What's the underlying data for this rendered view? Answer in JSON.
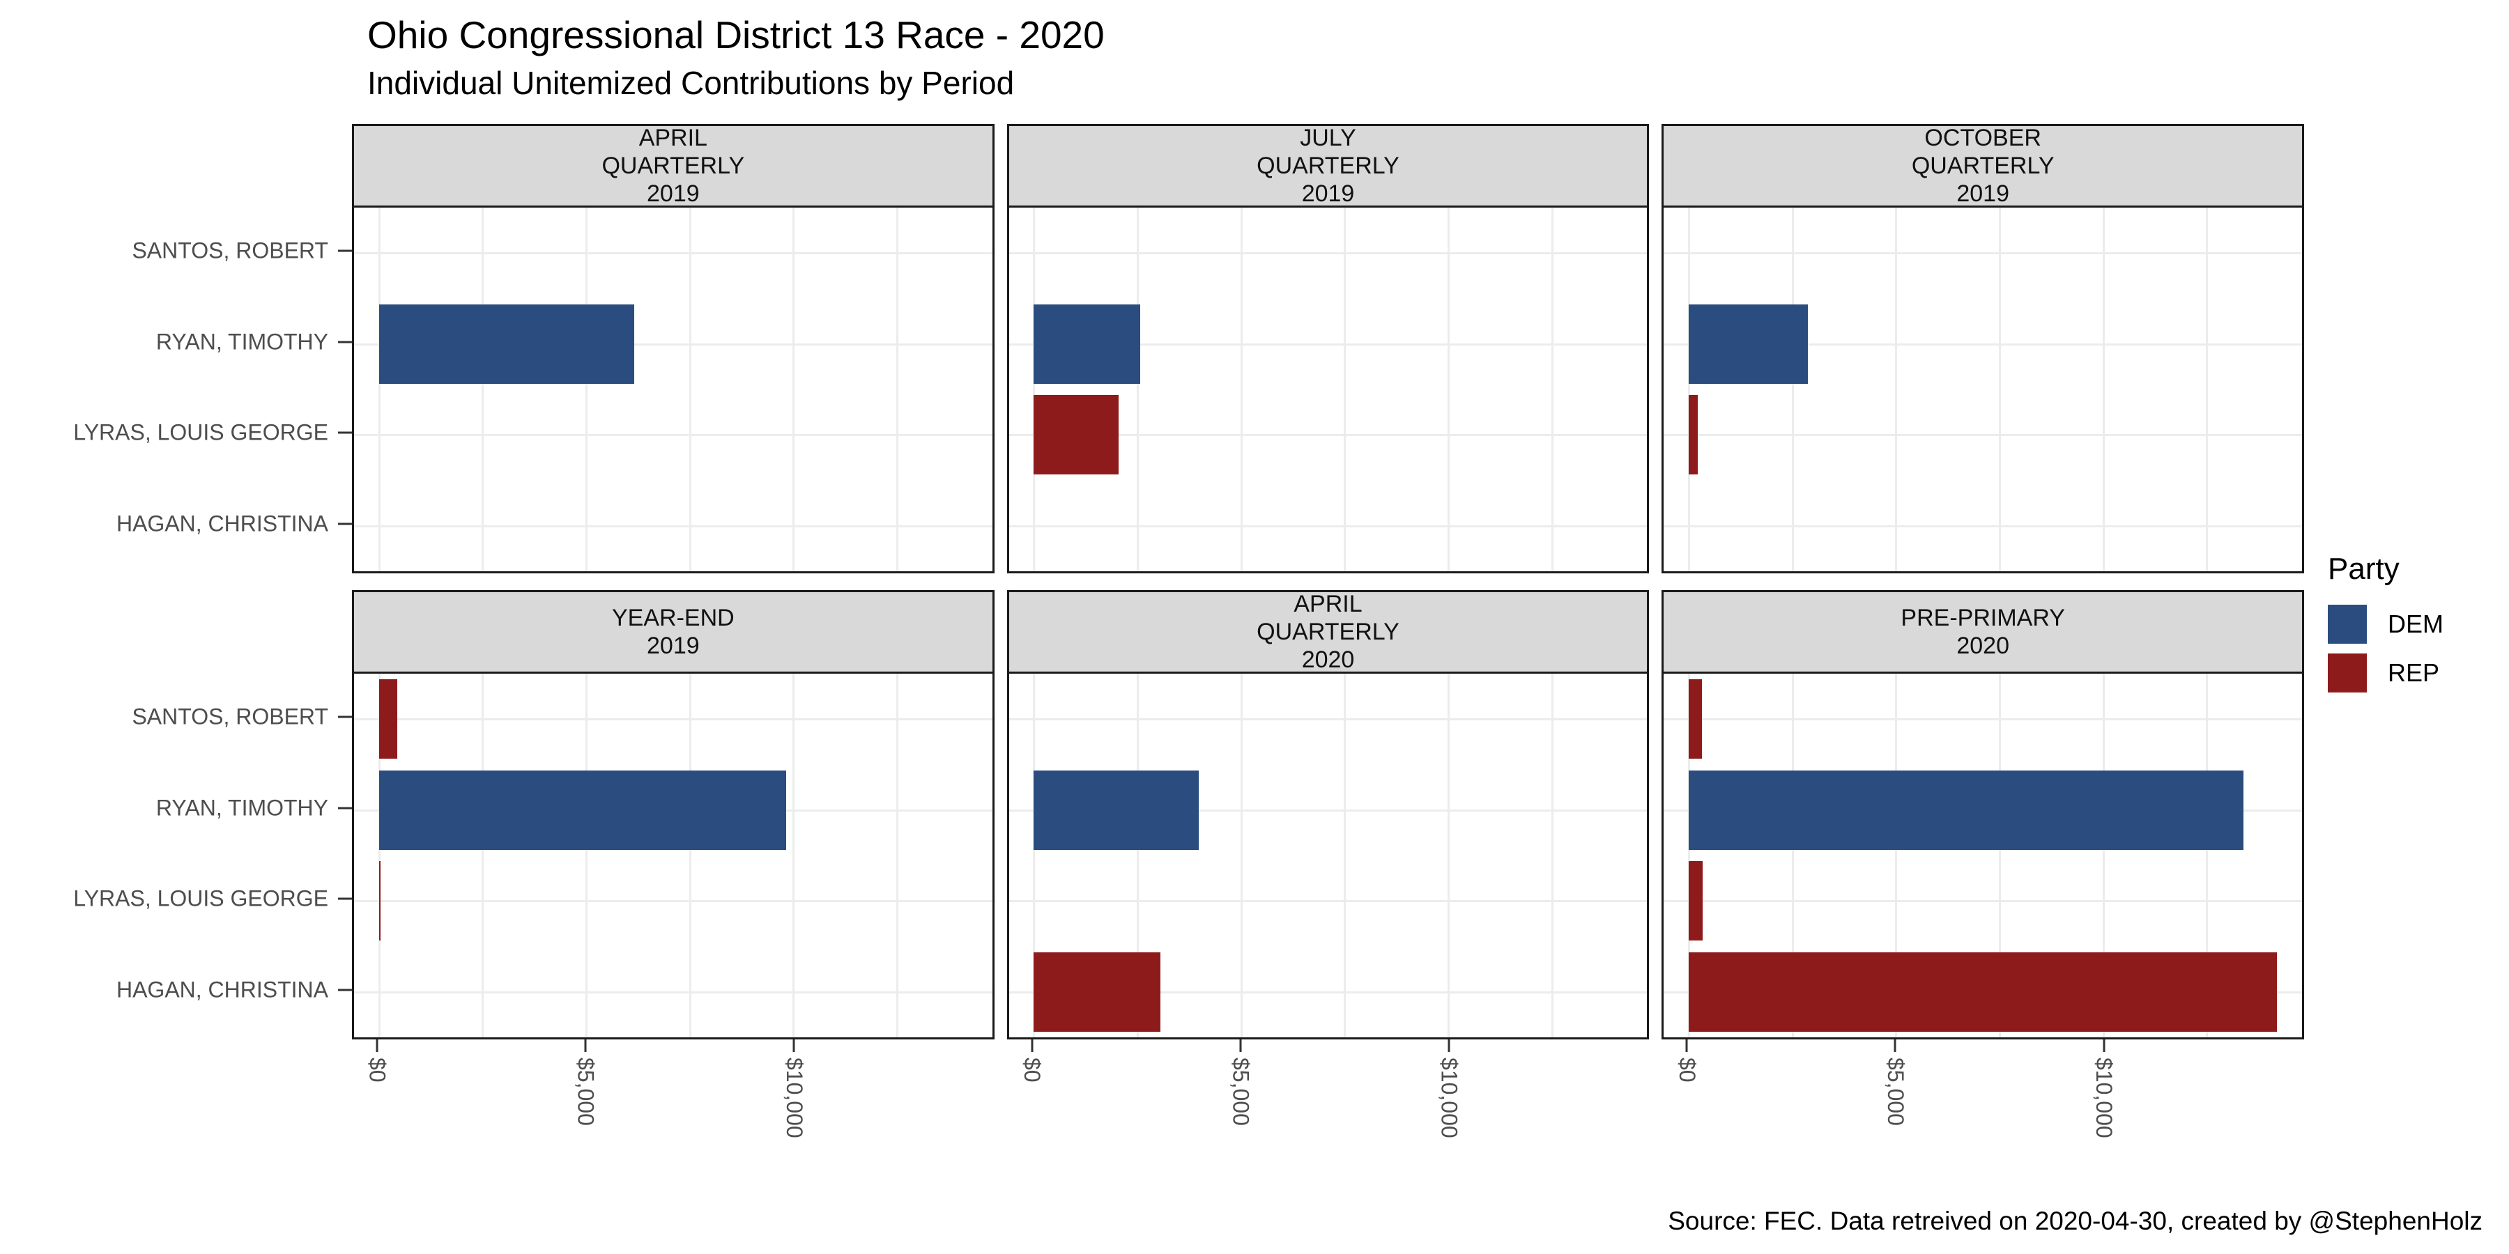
{
  "title": "Ohio Congressional District 13 Race - 2020",
  "subtitle": "Individual Unitemized Contributions by Period",
  "caption": "Source: FEC. Data retreived on 2020-04-30, created by @StephenHolz",
  "legend": {
    "title": "Party",
    "items": [
      {
        "label": "DEM",
        "color": "#2B4C7E"
      },
      {
        "label": "REP",
        "color": "#8E1B1B"
      }
    ]
  },
  "colors": {
    "dem": "#2B4C7E",
    "rep": "#8E1B1B",
    "strip_background": "#D9D9D9",
    "panel_border": "#1A1A1A",
    "gridline": "#ECECEC",
    "axis_text": "#4D4D4D"
  },
  "chart_data": {
    "type": "bar",
    "orientation": "horizontal",
    "title": "Ohio Congressional District 13 Race - 2020",
    "subtitle": "Individual Unitemized Contributions by Period",
    "categories": [
      "SANTOS, ROBERT",
      "RYAN, TIMOTHY",
      "LYRAS, LOUIS GEORGE",
      "HAGAN, CHRISTINA"
    ],
    "x_domain": [
      -600,
      14800
    ],
    "x_ticks": [
      {
        "label": "$0",
        "value": 0
      },
      {
        "label": "$5,000",
        "value": 5000
      },
      {
        "label": "$10,000",
        "value": 10000
      }
    ],
    "major_gridlines": [
      0,
      5000,
      10000
    ],
    "minor_gridlines": [
      2500,
      7500,
      12500
    ],
    "legend_position": "right",
    "facets": [
      {
        "label_lines": [
          "APRIL",
          "QUARTERLY",
          "2019"
        ],
        "bars": [
          {
            "candidate": "RYAN, TIMOTHY",
            "party": "DEM",
            "value": 6160
          }
        ]
      },
      {
        "label_lines": [
          "JULY",
          "QUARTERLY",
          "2019"
        ],
        "bars": [
          {
            "candidate": "RYAN, TIMOTHY",
            "party": "DEM",
            "value": 2560
          },
          {
            "candidate": "LYRAS, LOUIS GEORGE",
            "party": "REP",
            "value": 2040
          }
        ]
      },
      {
        "label_lines": [
          "OCTOBER",
          "QUARTERLY",
          "2019"
        ],
        "bars": [
          {
            "candidate": "RYAN, TIMOTHY",
            "party": "DEM",
            "value": 2880
          },
          {
            "candidate": "LYRAS, LOUIS GEORGE",
            "party": "REP",
            "value": 220
          }
        ]
      },
      {
        "label_lines": [
          "YEAR-END",
          "2019"
        ],
        "bars": [
          {
            "candidate": "SANTOS, ROBERT",
            "party": "REP",
            "value": 450
          },
          {
            "candidate": "RYAN, TIMOTHY",
            "party": "DEM",
            "value": 9820
          },
          {
            "candidate": "LYRAS, LOUIS GEORGE",
            "party": "REP",
            "value": 40
          }
        ]
      },
      {
        "label_lines": [
          "APRIL",
          "QUARTERLY",
          "2020"
        ],
        "bars": [
          {
            "candidate": "RYAN, TIMOTHY",
            "party": "DEM",
            "value": 3980
          },
          {
            "candidate": "HAGAN, CHRISTINA",
            "party": "REP",
            "value": 3050
          }
        ]
      },
      {
        "label_lines": [
          "PRE-PRIMARY",
          "2020"
        ],
        "bars": [
          {
            "candidate": "SANTOS, ROBERT",
            "party": "REP",
            "value": 320
          },
          {
            "candidate": "RYAN, TIMOTHY",
            "party": "DEM",
            "value": 13390
          },
          {
            "candidate": "LYRAS, LOUIS GEORGE",
            "party": "REP",
            "value": 330
          },
          {
            "candidate": "HAGAN, CHRISTINA",
            "party": "REP",
            "value": 14200
          }
        ]
      }
    ]
  }
}
